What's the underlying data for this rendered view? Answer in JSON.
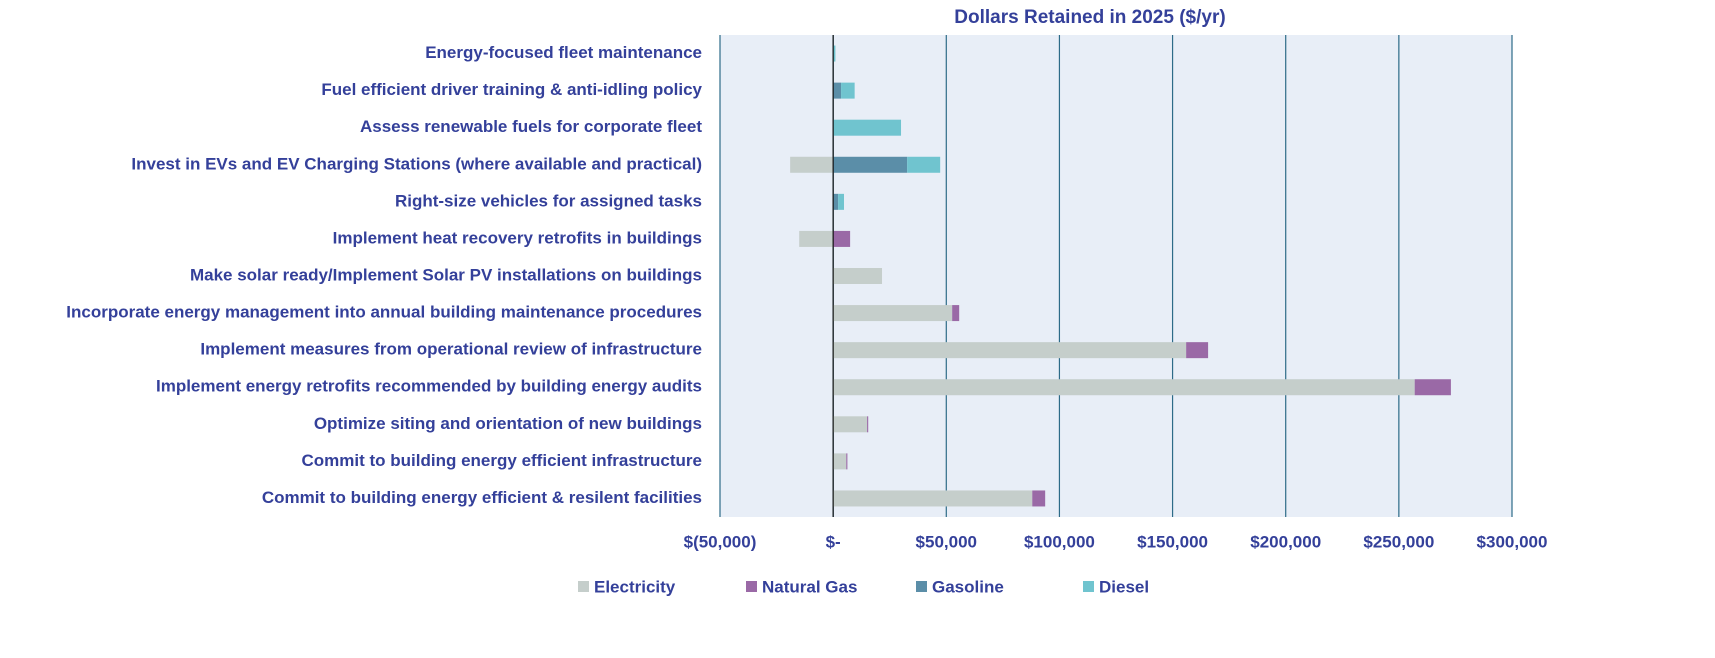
{
  "chart_data": {
    "type": "stacked-barh",
    "title": "Dollars Retained in 2025 ($/yr)",
    "categories": [
      "Energy-focused fleet maintenance",
      "Fuel efficient driver training & anti-idling policy",
      "Assess renewable fuels for corporate fleet",
      "Invest in EVs and EV Charging Stations (where available and practical)",
      "Right-size vehicles for assigned tasks",
      "Implement heat recovery retrofits in buildings",
      "Make solar ready/Implement Solar PV installations on buildings",
      "Incorporate energy management into annual building maintenance procedures",
      "Implement measures from operational review of infrastructure",
      "Implement energy retrofits recommended by building energy audits",
      "Optimize siting and orientation of new buildings",
      "Commit to building energy efficient infrastructure",
      "Commit to building energy efficient & resilent facilities"
    ],
    "series": [
      {
        "name": "Electricity",
        "color": "#c5cecb",
        "values": [
          0,
          0,
          0,
          -19000,
          0,
          -15000,
          21600,
          52600,
          156000,
          257000,
          15000,
          5800,
          88000
        ]
      },
      {
        "name": "Natural Gas",
        "color": "#9a69a6",
        "values": [
          0,
          0,
          0,
          0,
          0,
          7500,
          0,
          3100,
          9700,
          16000,
          500,
          500,
          5700
        ]
      },
      {
        "name": "Gasoline",
        "color": "#5b8ea8",
        "values": [
          0,
          3500,
          0,
          32700,
          2200,
          0,
          0,
          0,
          0,
          0,
          0,
          0,
          0
        ]
      },
      {
        "name": "Diesel",
        "color": "#70c4cf",
        "values": [
          1000,
          6000,
          30000,
          14600,
          2600,
          0,
          0,
          0,
          0,
          0,
          0,
          0,
          0
        ]
      }
    ],
    "xlim": [
      -50000,
      300000
    ],
    "xticks": [
      {
        "value": -50000,
        "label": "$(50,000)"
      },
      {
        "value": 0,
        "label": "$-"
      },
      {
        "value": 50000,
        "label": "$50,000"
      },
      {
        "value": 100000,
        "label": "$100,000"
      },
      {
        "value": 150000,
        "label": "$150,000"
      },
      {
        "value": 200000,
        "label": "$200,000"
      },
      {
        "value": 250000,
        "label": "$250,000"
      },
      {
        "value": 300000,
        "label": "$300,000"
      }
    ],
    "grid": true
  }
}
